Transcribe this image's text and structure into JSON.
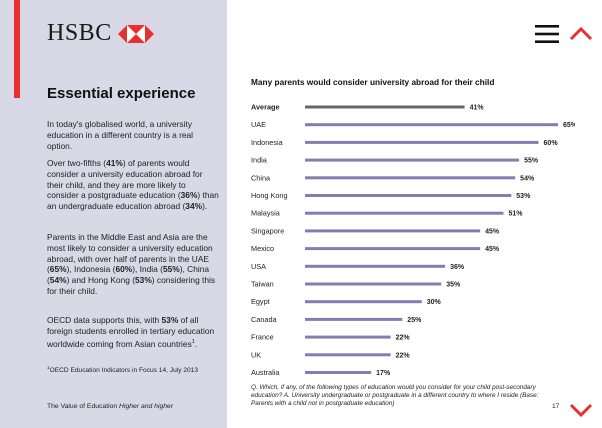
{
  "brand": {
    "name": "HSBC"
  },
  "colors": {
    "accent": "#e8312f",
    "bar": "#8080b0",
    "average_bar": "#666666",
    "sidebar_bg": "#d8d8e6"
  },
  "sidebar": {
    "heading": "Essential experience",
    "p1": "In today's globalised world, a university education in a different country is a real option.",
    "p2": [
      {
        "t": "Over two-fifths ("
      },
      {
        "t": "41%",
        "b": true
      },
      {
        "t": ") of parents would consider a university education abroad for their child, and they are more likely to consider a postgraduate education ("
      },
      {
        "t": "36%",
        "b": true
      },
      {
        "t": ") than an undergraduate education abroad ("
      },
      {
        "t": "34%",
        "b": true
      },
      {
        "t": ")."
      }
    ],
    "p3": [
      {
        "t": "Parents in the Middle East and Asia are the most likely to consider a university education abroad, with over half of parents in the UAE ("
      },
      {
        "t": "65%",
        "b": true
      },
      {
        "t": "), Indonesia ("
      },
      {
        "t": "60%",
        "b": true
      },
      {
        "t": "), India ("
      },
      {
        "t": "55%",
        "b": true
      },
      {
        "t": "), China ("
      },
      {
        "t": "54%",
        "b": true
      },
      {
        "t": ") and Hong Kong ("
      },
      {
        "t": "53%",
        "b": true
      },
      {
        "t": ") considering this for their child."
      }
    ],
    "p4": [
      {
        "t": "OECD data supports this, with "
      },
      {
        "t": "53%",
        "b": true
      },
      {
        "t": " of all foreign students enrolled in tertiary education worldwide coming from Asian countries"
      },
      {
        "t": "1",
        "sup": true
      },
      {
        "t": "."
      }
    ],
    "footnote": [
      {
        "t": "1",
        "sup": true
      },
      {
        "t": "OECD Education Indicators in Focus 14, July 2013"
      }
    ],
    "footer_plain": "The Value of Education ",
    "footer_italic": "Higher and higher"
  },
  "chart_data": {
    "type": "bar",
    "orientation": "horizontal",
    "title": "Many parents would consider university abroad for their child",
    "categories": [
      "Average",
      "UAE",
      "Indonesia",
      "India",
      "China",
      "Hong Kong",
      "Malaysia",
      "Singapore",
      "Mexico",
      "USA",
      "Taiwan",
      "Egypt",
      "Canada",
      "France",
      "UK",
      "Australia"
    ],
    "values": [
      41,
      65,
      60,
      55,
      54,
      53,
      51,
      45,
      45,
      36,
      35,
      30,
      25,
      22,
      22,
      17
    ],
    "value_labels": [
      "41%",
      "65%",
      "60%",
      "55%",
      "54%",
      "53%",
      "51%",
      "45%",
      "45%",
      "36%",
      "35%",
      "30%",
      "25%",
      "22%",
      "22%",
      "17%"
    ],
    "highlighted_category": "Average",
    "xlim": [
      0,
      65
    ],
    "grid": false,
    "note": "Q. Which, if any, of the following types of education would you consider for your child post-secondary education? A. University undergraduate or postgraduate in a different country to where I reside (Base: Parents with a child not in postgraduate education)"
  },
  "page": {
    "number": "17"
  },
  "nav": {
    "menu_icon": "hamburger-menu-icon",
    "up_icon": "chevron-up-icon",
    "down_icon": "chevron-down-icon"
  }
}
